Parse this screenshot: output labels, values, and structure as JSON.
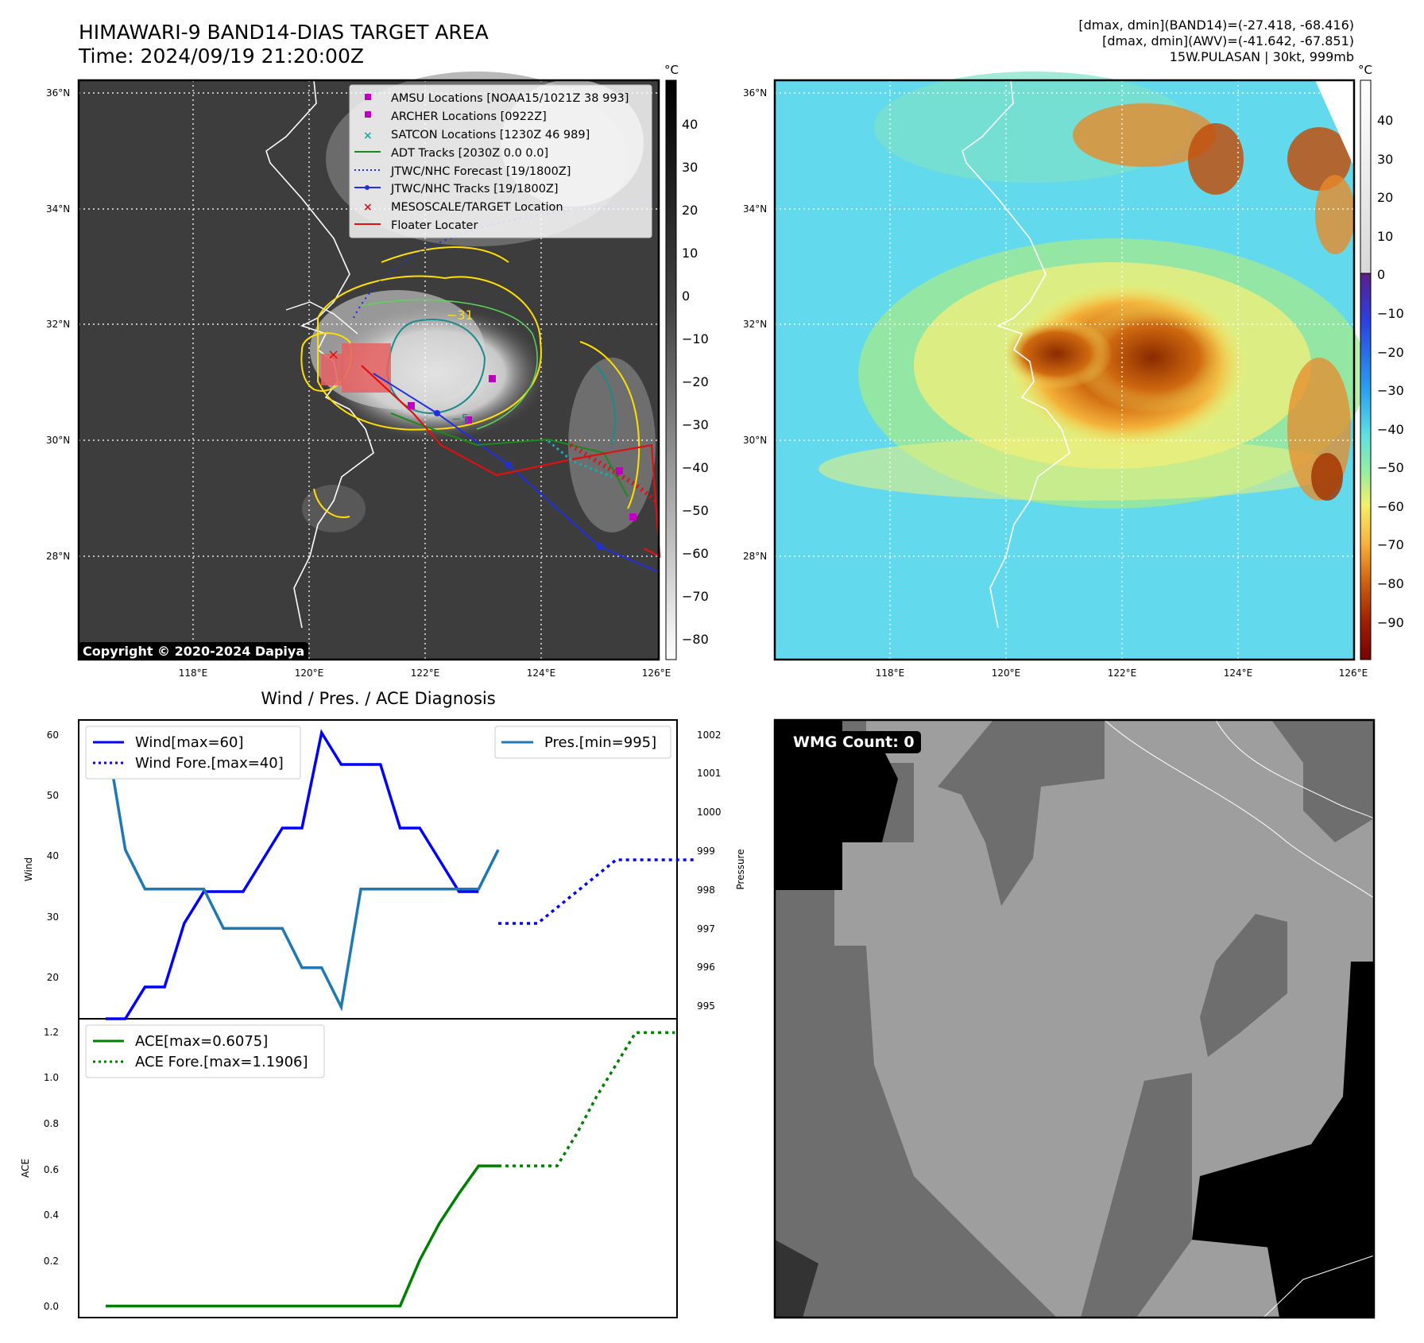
{
  "header": {
    "title": "HIMAWARI-9 BAND14-DIAS TARGET AREA",
    "time": "Time: 2024/09/19 21:20:00Z",
    "stats_band14": "[dmax, dmin](BAND14)=(-27.418, -68.416)",
    "stats_awv": "[dmax, dmin](AWV)=(-41.642, -67.851)",
    "storm": "15W.PULASAN | 30kt, 999mb"
  },
  "map": {
    "lat_labels": [
      "36°N",
      "34°N",
      "32°N",
      "30°N",
      "28°N"
    ],
    "lon_labels": [
      "118°E",
      "120°E",
      "122°E",
      "124°E",
      "126°E"
    ],
    "copyright": "Copyright © 2020-2024 Dapiya",
    "colorbar_unit": "°C",
    "gray_colorbar_ticks": [
      "40",
      "30",
      "20",
      "10",
      "0",
      "−10",
      "−20",
      "−30",
      "−40",
      "−50",
      "−60",
      "−70",
      "−80"
    ],
    "color_colorbar_ticks": [
      "40",
      "30",
      "20",
      "10",
      "0",
      "−10",
      "−20",
      "−30",
      "−40",
      "−50",
      "−60",
      "−70",
      "−80",
      "−90"
    ],
    "contour_labels": [
      "−31",
      "−5"
    ],
    "legend": [
      {
        "label": "AMSU Locations [NOAA15/1021Z 38 993]",
        "symbol": "square",
        "color": "#c000c0"
      },
      {
        "label": "ARCHER Locations [0922Z]",
        "symbol": "square",
        "color": "#c000c0"
      },
      {
        "label": "SATCON Locations [1230Z 46 989]",
        "symbol": "x",
        "color": "#10b0b0"
      },
      {
        "label": "ADT Tracks [2030Z 0.0 0.0]",
        "symbol": "line",
        "color": "#1a8a1a"
      },
      {
        "label": "JTWC/NHC Forecast [19/1800Z]",
        "symbol": "dotted",
        "color": "#1f2fe0"
      },
      {
        "label": "JTWC/NHC Tracks [19/1800Z]",
        "symbol": "line-dot",
        "color": "#1f2fe0"
      },
      {
        "label": "MESOSCALE/TARGET Location",
        "symbol": "x",
        "color": "#e01010"
      },
      {
        "label": "Floater Locater",
        "symbol": "line",
        "color": "#e01010"
      }
    ]
  },
  "diagnosis": {
    "title": "Wind / Pres. / ACE Diagnosis",
    "wind_ylabel": "Wind",
    "pressure_ylabel": "Pressure",
    "ace_ylabel": "ACE",
    "legend_wind": "Wind[max=60]",
    "legend_wind_fore": "Wind Fore.[max=40]",
    "legend_pres": "Pres.[min=995]",
    "legend_ace": "ACE[max=0.6075]",
    "legend_ace_fore": "ACE Fore.[max=1.1906]",
    "wind_ticks": [
      "60",
      "50",
      "40",
      "30",
      "20"
    ],
    "pres_ticks": [
      "1002",
      "1001",
      "1000",
      "999",
      "998",
      "997",
      "996",
      "995"
    ],
    "ace_ticks": [
      "1.2",
      "1.0",
      "0.8",
      "0.6",
      "0.4",
      "0.2",
      "0.0"
    ]
  },
  "wmg": {
    "label": "WMG Count: 0"
  },
  "chart_data": [
    {
      "type": "line",
      "title": "Wind / Pres. / ACE Diagnosis",
      "ylabel": "Wind",
      "ylim": [
        15,
        62
      ],
      "series": [
        {
          "name": "Wind[max=60]",
          "style": "solid",
          "color": "#0000ff",
          "x": [
            0,
            1,
            2,
            3,
            4,
            5,
            6,
            7,
            8,
            9,
            10,
            11,
            12,
            13,
            14,
            15,
            16,
            17,
            18,
            19
          ],
          "y": [
            15,
            15,
            20,
            20,
            30,
            35,
            35,
            35,
            40,
            45,
            45,
            60,
            55,
            55,
            55,
            45,
            45,
            40,
            35,
            35
          ]
        },
        {
          "name": "Wind Fore.[max=40]",
          "style": "dotted",
          "color": "#0000ff",
          "x": [
            20,
            22,
            26,
            28,
            30
          ],
          "y": [
            30,
            30,
            40,
            40,
            40
          ]
        }
      ]
    },
    {
      "type": "line",
      "ylabel": "Pressure",
      "ylim": [
        994.7,
        1002.3
      ],
      "series": [
        {
          "name": "Pres.[min=995]",
          "style": "solid",
          "color": "#1f77b4",
          "x": [
            0,
            1,
            2,
            3,
            4,
            5,
            6,
            7,
            8,
            9,
            10,
            11,
            12,
            13,
            14,
            15,
            16,
            17,
            18,
            19,
            20
          ],
          "y": [
            1002,
            999,
            998,
            998,
            998,
            998,
            997,
            997,
            997,
            997,
            996,
            996,
            995,
            998,
            998,
            998,
            998,
            998,
            998,
            998,
            999
          ]
        }
      ]
    },
    {
      "type": "line",
      "ylabel": "ACE",
      "ylim": [
        -0.05,
        1.25
      ],
      "series": [
        {
          "name": "ACE[max=0.6075]",
          "style": "solid",
          "color": "#008000",
          "x": [
            0,
            15,
            16,
            17,
            18,
            19,
            20
          ],
          "y": [
            0,
            0,
            0.2,
            0.36,
            0.49,
            0.61,
            0.61
          ]
        },
        {
          "name": "ACE Fore.[max=1.1906]",
          "style": "dotted",
          "color": "#008000",
          "x": [
            20,
            22,
            23,
            24,
            25,
            27,
            28,
            29
          ],
          "y": [
            0.61,
            0.61,
            0.61,
            0.75,
            0.91,
            1.19,
            1.19,
            1.19
          ]
        }
      ]
    }
  ]
}
